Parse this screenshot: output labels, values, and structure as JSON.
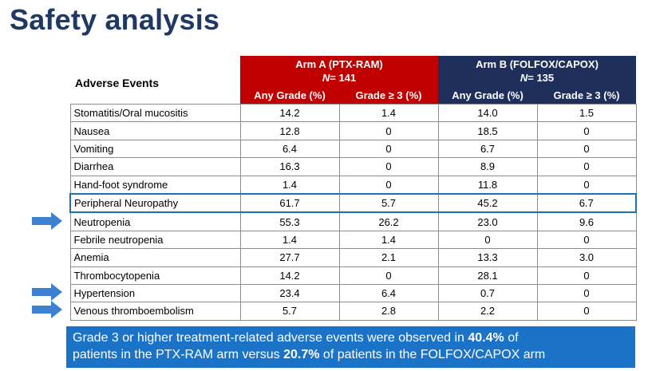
{
  "title": "Safety analysis",
  "table": {
    "header_label": "Adverse Events",
    "arm_a": {
      "name": "Arm A (PTX-RAM)",
      "n_label": "N",
      "n_value": "= 141"
    },
    "arm_b": {
      "name": "Arm B (FOLFOX/CAPOX)",
      "n_label": "N",
      "n_value": "= 135"
    },
    "subheaders": [
      "Any Grade (%)",
      "Grade ≥ 3 (%)",
      "Any Grade (%)",
      "Grade ≥ 3 (%)"
    ],
    "rows": [
      {
        "event": "Stomatitis/Oral mucositis",
        "a_any": "14.2",
        "a_g3": "1.4",
        "b_any": "14.0",
        "b_g3": "1.5"
      },
      {
        "event": "Nausea",
        "a_any": "12.8",
        "a_g3": "0",
        "b_any": "18.5",
        "b_g3": "0"
      },
      {
        "event": "Vomiting",
        "a_any": "6.4",
        "a_g3": "0",
        "b_any": "6.7",
        "b_g3": "0"
      },
      {
        "event": "Diarrhea",
        "a_any": "16.3",
        "a_g3": "0",
        "b_any": "8.9",
        "b_g3": "0"
      },
      {
        "event": "Hand-foot syndrome",
        "a_any": "1.4",
        "a_g3": "0",
        "b_any": "11.8",
        "b_g3": "0"
      },
      {
        "event": "Peripheral Neuropathy",
        "a_any": "61.7",
        "a_g3": "5.7",
        "b_any": "45.2",
        "b_g3": "6.7"
      },
      {
        "event": "Neutropenia",
        "a_any": "55.3",
        "a_g3": "26.2",
        "b_any": "23.0",
        "b_g3": "9.6"
      },
      {
        "event": "Febrile neutropenia",
        "a_any": "1.4",
        "a_g3": "1.4",
        "b_any": "0",
        "b_g3": "0"
      },
      {
        "event": "Anemia",
        "a_any": "27.7",
        "a_g3": "2.1",
        "b_any": "13.3",
        "b_g3": "3.0"
      },
      {
        "event": "Thrombocytopenia",
        "a_any": "14.2",
        "a_g3": "0",
        "b_any": "28.1",
        "b_g3": "0"
      },
      {
        "event": "Hypertension",
        "a_any": "23.4",
        "a_g3": "6.4",
        "b_any": "0.7",
        "b_g3": "0"
      },
      {
        "event": "Venous thromboembolism",
        "a_any": "5.7",
        "a_g3": "2.8",
        "b_any": "2.2",
        "b_g3": "0"
      }
    ]
  },
  "banner": {
    "line1_pre": "Grade 3 or higher treatment-related adverse events were observed in ",
    "line1_bold": "40.4%",
    "line1_post": " of",
    "line2_pre": "patients in the PTX-RAM arm versus ",
    "line2_bold": "20.7%",
    "line2_post": " of patients in the FOLFOX/CAPOX arm"
  },
  "colors": {
    "title": "#1f3864",
    "arm_a": "#c00000",
    "arm_b": "#1f2f5c",
    "banner": "#1a73c6",
    "arrow": "#3d7fd1",
    "highlight": "#1f6fb2"
  },
  "arrows": [
    {
      "icon": "right-arrow-icon",
      "row": "Neutropenia"
    },
    {
      "icon": "right-arrow-icon",
      "row": "Hypertension"
    },
    {
      "icon": "right-arrow-icon",
      "row": "Venous thromboembolism"
    }
  ]
}
